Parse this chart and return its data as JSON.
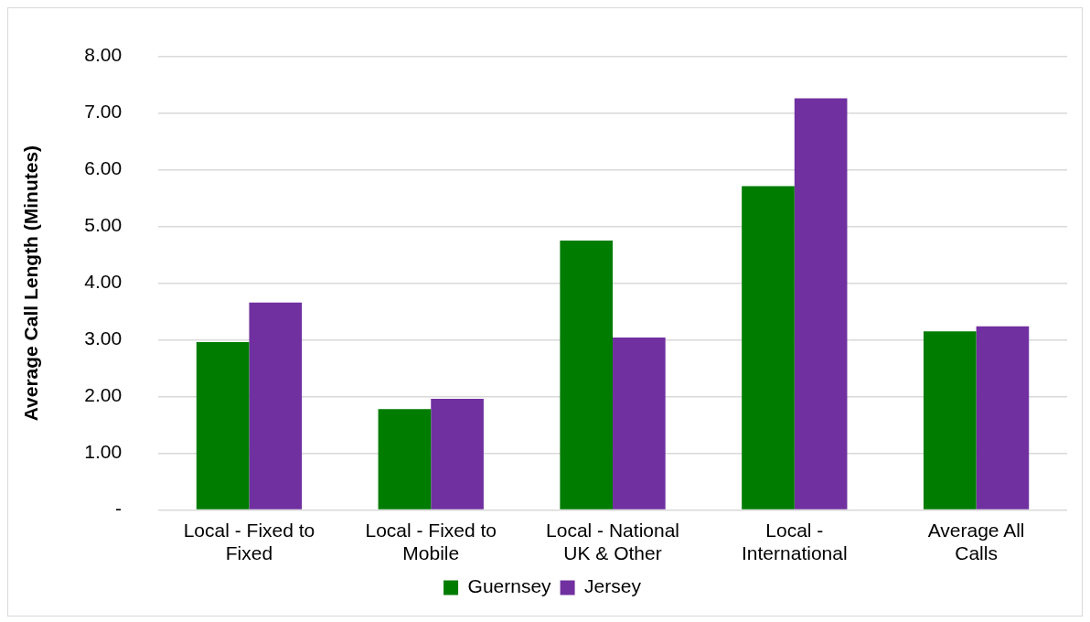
{
  "chart_data": {
    "type": "bar",
    "ylabel": "Average Call Length (Minutes)",
    "categories": [
      "Local - Fixed to Fixed",
      "Local - Fixed to Mobile",
      "Local - National UK & Other",
      "Local - International",
      "Average All Calls"
    ],
    "series": [
      {
        "name": "Guernsey",
        "color": "#007c00",
        "values": [
          2.96,
          1.78,
          4.75,
          5.71,
          3.15
        ]
      },
      {
        "name": "Jersey",
        "color": "#7030a0",
        "values": [
          3.66,
          1.96,
          3.04,
          7.26,
          3.24
        ]
      }
    ],
    "ylim": [
      0,
      8
    ],
    "yticks": [
      {
        "value": 0,
        "label": "-"
      },
      {
        "value": 1,
        "label": "1.00"
      },
      {
        "value": 2,
        "label": "2.00"
      },
      {
        "value": 3,
        "label": "3.00"
      },
      {
        "value": 4,
        "label": "4.00"
      },
      {
        "value": 5,
        "label": "5.00"
      },
      {
        "value": 6,
        "label": "6.00"
      },
      {
        "value": 7,
        "label": "7.00"
      },
      {
        "value": 8,
        "label": "8.00"
      }
    ],
    "grid": "y",
    "legend": "bottom"
  }
}
